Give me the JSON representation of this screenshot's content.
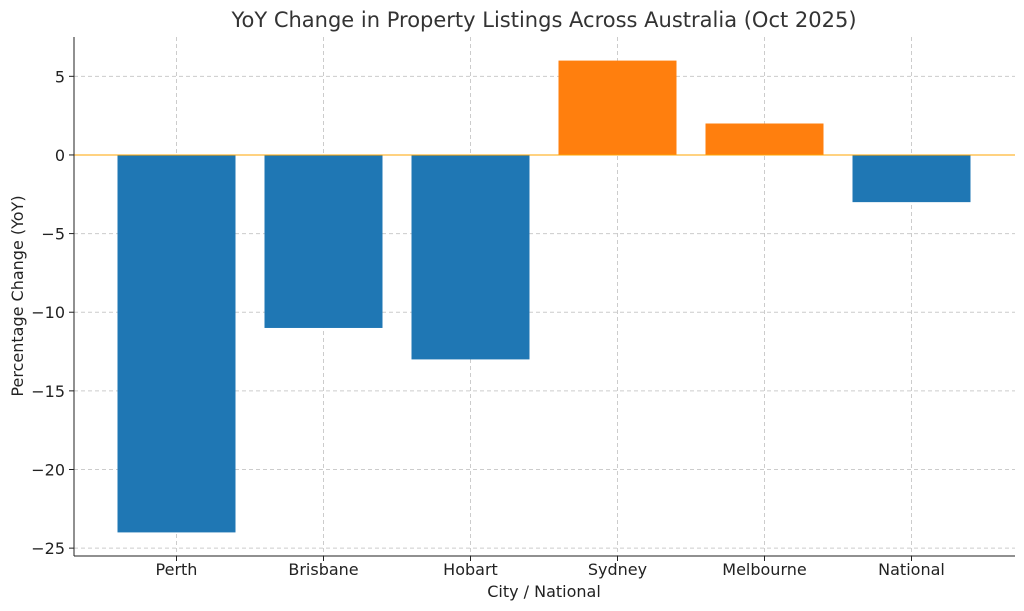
{
  "chart_data": {
    "type": "bar",
    "title": "YoY Change in Property Listings Across Australia (Oct 2025)",
    "xlabel": "City / National",
    "ylabel": "Percentage Change (YoY)",
    "categories": [
      "Perth",
      "Brisbane",
      "Hobart",
      "Sydney",
      "Melbourne",
      "National"
    ],
    "values": [
      -24,
      -11,
      -13,
      6,
      2,
      -3
    ],
    "ylim": [
      -25.5,
      7.5
    ],
    "yticks": [
      5,
      0,
      -5,
      -10,
      -15,
      -20,
      -25
    ],
    "ytick_labels": [
      "5",
      "0",
      "−5",
      "−10",
      "−15",
      "−20",
      "−25"
    ],
    "grid": true,
    "colors": {
      "negative": "#1f77b4",
      "positive": "#ff7f0e",
      "zero_line": "#ffa500"
    }
  }
}
